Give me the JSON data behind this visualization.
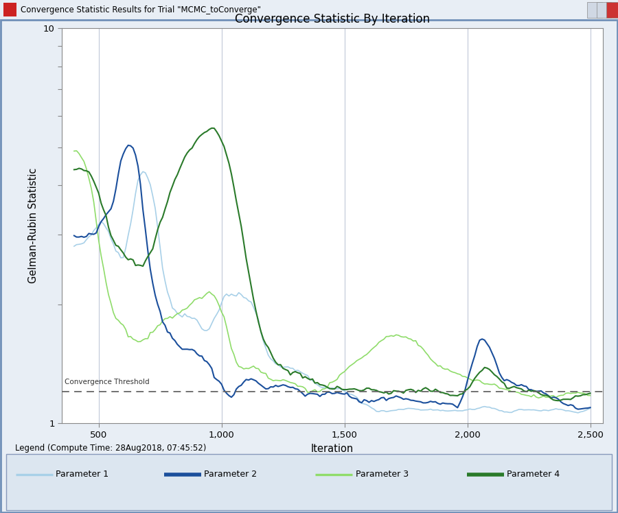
{
  "title": "Convergence Statistic By Iteration",
  "xlabel": "Iteration",
  "ylabel": "Gelman-Rubin Statistic",
  "legend_title": "Legend (Compute Time: 28Aug2018, 07:45:52)",
  "convergence_threshold": 1.2,
  "convergence_label": "Convergence Threshold",
  "xlim": [
    350,
    2550
  ],
  "ylim_log": [
    1.0,
    10.0
  ],
  "xticks": [
    500,
    1000,
    1500,
    2000,
    2500
  ],
  "grid_verticals": [
    500,
    1000,
    1500,
    2000,
    2500
  ],
  "param_colors": {
    "Parameter 1": "#a8d0e8",
    "Parameter 2": "#1b4f9c",
    "Parameter 3": "#8fdc6a",
    "Parameter 4": "#2a7a2a"
  },
  "window_title": "Convergence Statistic Results for Trial \"MCMC_toConverge\"",
  "titlebar_color": "#c8d8ec",
  "outer_border_color": "#7090b8",
  "plot_bg": "#ffffff",
  "fig_bg": "#e8eef5"
}
